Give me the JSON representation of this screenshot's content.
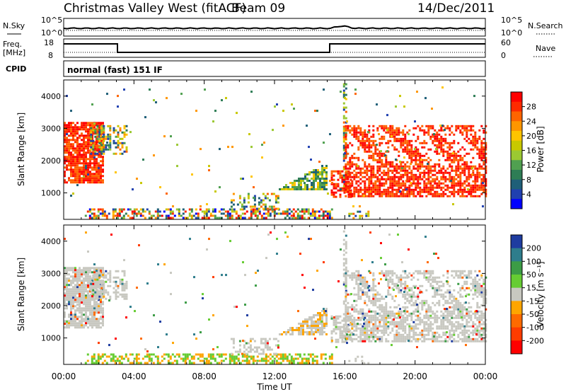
{
  "header": {
    "station": "Christmas Valley West (fitACF)",
    "beam": "Beam 09",
    "date": "14/Dec/2011"
  },
  "labels": {
    "nsky": "N.Sky",
    "nsearch": "N.Search",
    "freq": "Freq.",
    "freq_unit": "[MHz]",
    "nave": "Nave",
    "cpid": "CPID",
    "cpid_value": "normal (fast) 151 IF",
    "noise_ticks": [
      "10^5",
      "10^0"
    ],
    "freq_ticks": [
      "18",
      "8"
    ],
    "nave_ticks": [
      "60",
      "0"
    ]
  },
  "chart_data": [
    {
      "type": "heatmap",
      "title": "Power",
      "xlabel": "Time UT",
      "ylabel": "Slant Range [km]",
      "x_ticks": [
        "00:00",
        "04:00",
        "08:00",
        "12:00",
        "16:00",
        "20:00",
        "00:00"
      ],
      "xlim_hours": [
        0,
        24
      ],
      "ylim": [
        180,
        4500
      ],
      "y_ticks": [
        1000,
        2000,
        3000,
        4000
      ],
      "colorbar": {
        "label": "Power [dB]",
        "ticks": [
          "28",
          "24",
          "20",
          "16",
          "12",
          "8",
          "4"
        ],
        "colors": [
          "#ff0000",
          "#ff2a00",
          "#ff6400",
          "#ff9600",
          "#ffc400",
          "#c8c800",
          "#9bc832",
          "#50a050",
          "#2e7d55",
          "#1f5f78",
          "#2040b0",
          "#0000ff"
        ]
      }
    },
    {
      "type": "heatmap",
      "title": "Velocity",
      "xlabel": "Time UT",
      "ylabel": "Slant Range [km]",
      "x_ticks": [
        "00:00",
        "04:00",
        "08:00",
        "12:00",
        "16:00",
        "20:00",
        "00:00"
      ],
      "xlim_hours": [
        0,
        24
      ],
      "ylim": [
        180,
        4500
      ],
      "y_ticks": [
        1000,
        2000,
        3000,
        4000
      ],
      "colorbar": {
        "label": "Velocity [m s⁻¹]",
        "ticks": [
          "200",
          "100",
          "50",
          "15",
          "-15",
          "-50",
          "-100",
          "-200"
        ],
        "colors": [
          "#1e3ca0",
          "#2e7d8c",
          "#3c9c46",
          "#66cc33",
          "#c8c8c0",
          "#ffa500",
          "#ff6a00",
          "#ff3c00",
          "#ff0000"
        ]
      }
    }
  ]
}
